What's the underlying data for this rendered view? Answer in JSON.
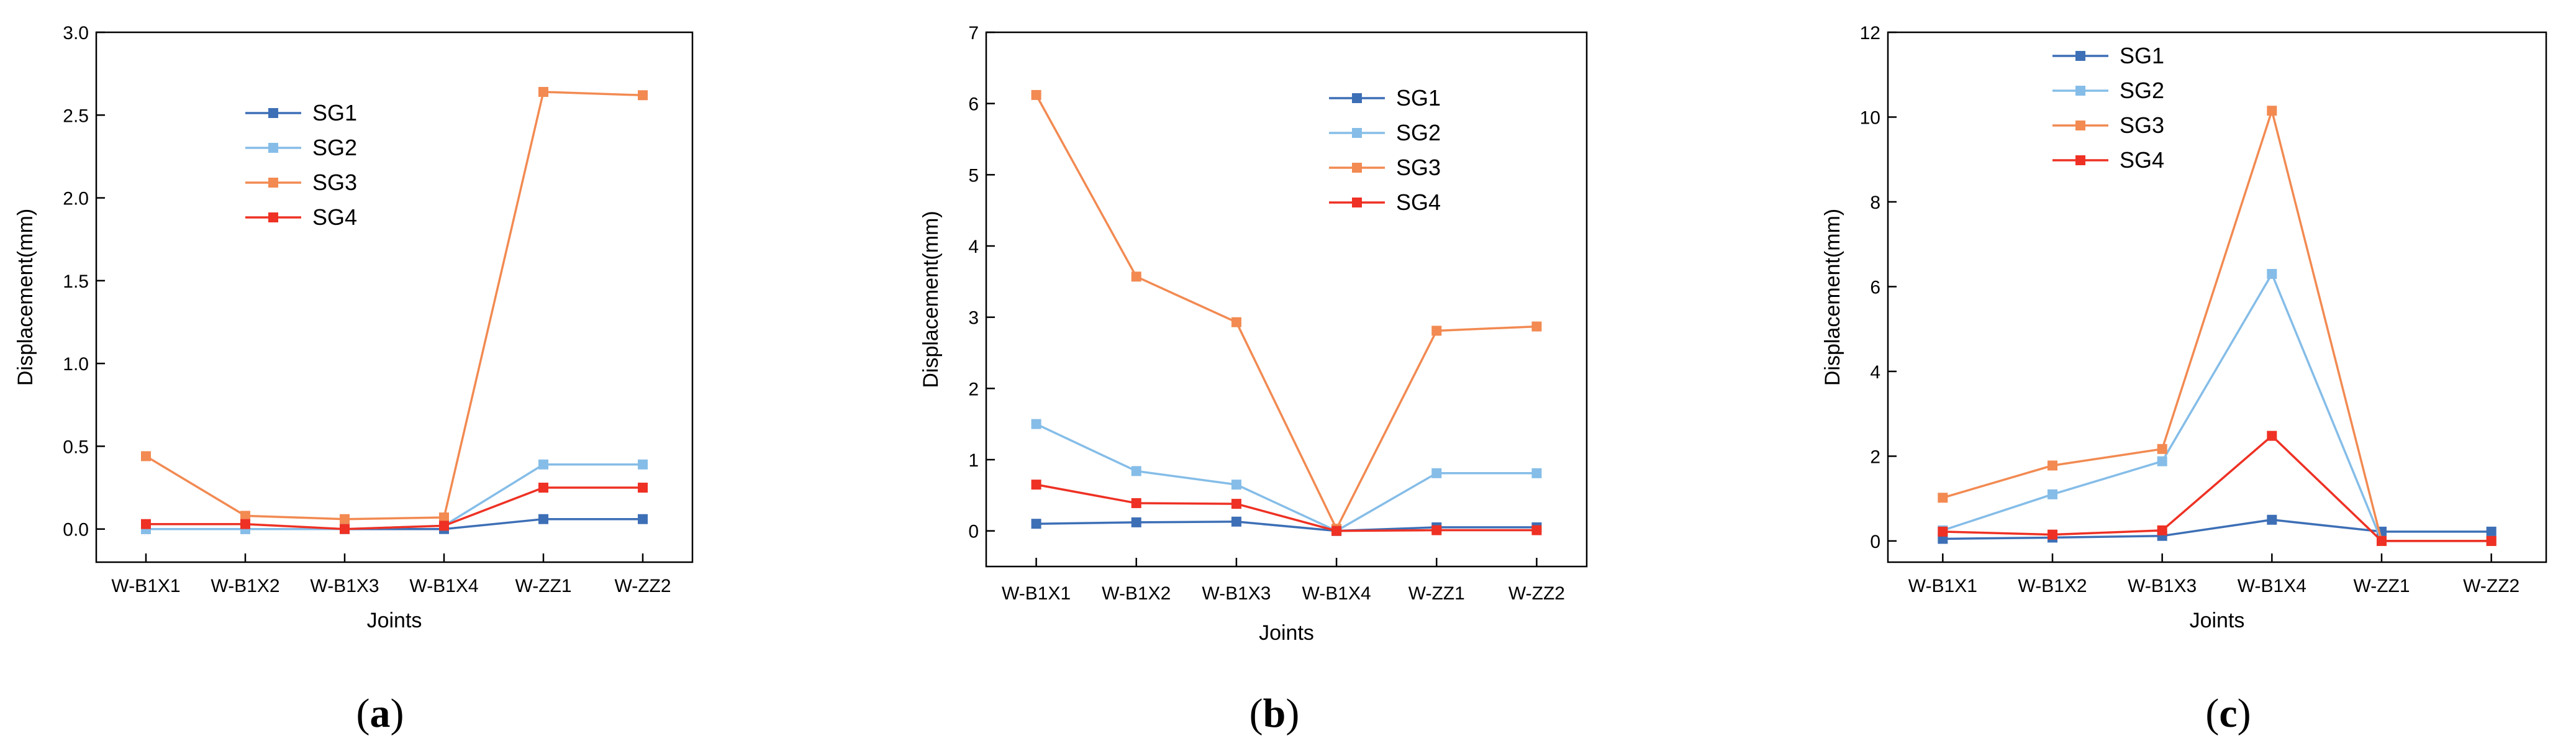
{
  "chart_data": [
    {
      "type": "line",
      "panel_label": "a",
      "xlabel": "Joints",
      "ylabel": "Displacement(mm)",
      "categories": [
        "W-B1X1",
        "W-B1X2",
        "W-B1X3",
        "W-B1X4",
        "W-ZZ1",
        "W-ZZ2"
      ],
      "ylim": [
        -0.2,
        3.0
      ],
      "yticks": [
        0.0,
        0.5,
        1.0,
        1.5,
        2.0,
        2.5,
        3.0
      ],
      "ytick_labels": [
        "0.0",
        "0.5",
        "1.0",
        "1.5",
        "2.0",
        "2.5",
        "3.0"
      ],
      "legend_position": "upper-left",
      "series": [
        {
          "name": "SG1",
          "color": "#3d6fb6",
          "values": [
            0.0,
            0.0,
            0.0,
            0.0,
            0.06,
            0.06
          ]
        },
        {
          "name": "SG2",
          "color": "#85bde8",
          "values": [
            0.0,
            0.0,
            0.0,
            0.02,
            0.39,
            0.39
          ]
        },
        {
          "name": "SG3",
          "color": "#f28a52",
          "values": [
            0.44,
            0.08,
            0.06,
            0.07,
            2.64,
            2.62
          ]
        },
        {
          "name": "SG4",
          "color": "#ee3124",
          "values": [
            0.03,
            0.03,
            0.0,
            0.02,
            0.25,
            0.25
          ]
        }
      ]
    },
    {
      "type": "line",
      "panel_label": "b",
      "xlabel": "Joints",
      "ylabel": "Displacement(mm)",
      "categories": [
        "W-B1X1",
        "W-B1X2",
        "W-B1X3",
        "W-B1X4",
        "W-ZZ1",
        "W-ZZ2"
      ],
      "ylim": [
        -0.5,
        7.0
      ],
      "yticks": [
        0,
        1,
        2,
        3,
        4,
        5,
        6,
        7
      ],
      "ytick_labels": [
        "0",
        "1",
        "2",
        "3",
        "4",
        "5",
        "6",
        "7"
      ],
      "legend_position": "upper-center",
      "series": [
        {
          "name": "SG1",
          "color": "#3d6fb6",
          "values": [
            0.1,
            0.12,
            0.13,
            0.0,
            0.05,
            0.05
          ]
        },
        {
          "name": "SG2",
          "color": "#85bde8",
          "values": [
            1.5,
            0.84,
            0.65,
            0.0,
            0.81,
            0.81
          ]
        },
        {
          "name": "SG3",
          "color": "#f28a52",
          "values": [
            6.12,
            3.57,
            2.93,
            0.03,
            2.81,
            2.87
          ]
        },
        {
          "name": "SG4",
          "color": "#ee3124",
          "values": [
            0.65,
            0.39,
            0.38,
            0.0,
            0.01,
            0.01
          ]
        }
      ]
    },
    {
      "type": "line",
      "panel_label": "c",
      "xlabel": "Joints",
      "ylabel": "Displacement(mm)",
      "categories": [
        "W-B1X1",
        "W-B1X2",
        "W-B1X3",
        "W-B1X4",
        "W-ZZ1",
        "W-ZZ2"
      ],
      "ylim": [
        -0.5,
        12.0
      ],
      "yticks": [
        0,
        2,
        4,
        6,
        8,
        10,
        12
      ],
      "ytick_labels": [
        "0",
        "2",
        "4",
        "6",
        "8",
        "10",
        "12"
      ],
      "legend_position": "top-left",
      "series": [
        {
          "name": "SG1",
          "color": "#3d6fb6",
          "values": [
            0.05,
            0.08,
            0.12,
            0.5,
            0.22,
            0.22
          ]
        },
        {
          "name": "SG2",
          "color": "#85bde8",
          "values": [
            0.25,
            1.1,
            1.88,
            6.3,
            0.0,
            0.0
          ]
        },
        {
          "name": "SG3",
          "color": "#f28a52",
          "values": [
            1.02,
            1.78,
            2.17,
            10.15,
            0.0,
            0.0
          ]
        },
        {
          "name": "SG4",
          "color": "#ee3124",
          "values": [
            0.22,
            0.15,
            0.25,
            2.48,
            0.0,
            0.0
          ]
        }
      ]
    }
  ]
}
